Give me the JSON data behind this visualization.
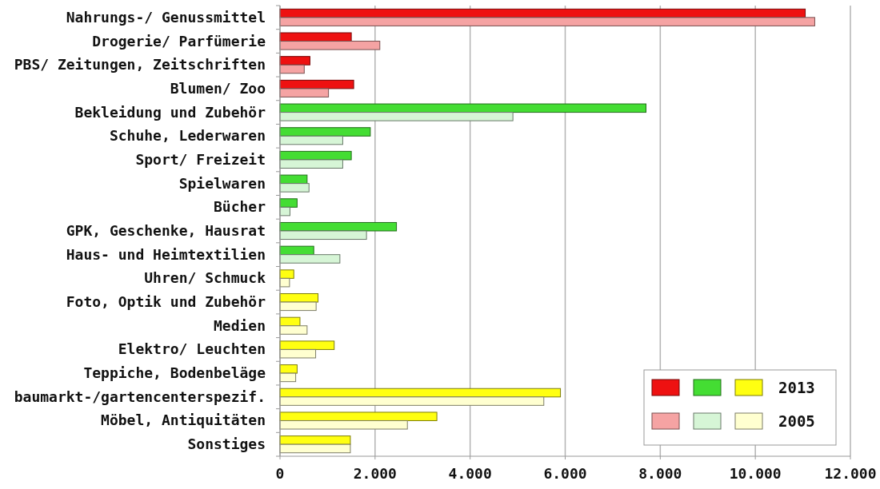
{
  "chart_data": {
    "type": "bar",
    "orientation": "horizontal",
    "categories": [
      "Nahrungs-/ Genussmittel",
      "Drogerie/ Parfümerie",
      "PBS/ Zeitungen, Zeitschriften",
      "Blumen/ Zoo",
      "Bekleidung und Zubehör",
      "Schuhe, Lederwaren",
      "Sport/ Freizeit",
      "Spielwaren",
      "Bücher",
      "GPK, Geschenke, Hausrat",
      "Haus- und Heimtextilien",
      "Uhren/ Schmuck",
      "Foto, Optik und Zubehör",
      "Medien",
      "Elektro/ Leuchten",
      "Teppiche, Bodenbeläge",
      "baumarkt-/gartencenterspezif.",
      "Möbel, Antiquitäten",
      "Sonstiges"
    ],
    "series": [
      {
        "name": "2013",
        "colors": [
          "#ee1111",
          "#ee1111",
          "#ee1111",
          "#ee1111",
          "#44dd33",
          "#44dd33",
          "#44dd33",
          "#44dd33",
          "#44dd33",
          "#44dd33",
          "#44dd33",
          "#ffff11",
          "#ffff11",
          "#ffff11",
          "#ffff11",
          "#ffff11",
          "#ffff11",
          "#ffff11",
          "#ffff11"
        ],
        "values": [
          11050,
          1500,
          630,
          1550,
          7700,
          1900,
          1500,
          570,
          360,
          2450,
          710,
          290,
          800,
          420,
          1140,
          360,
          5900,
          3300,
          1480
        ]
      },
      {
        "name": "2005",
        "colors": [
          "#f5a3a3",
          "#f5a3a3",
          "#f5a3a3",
          "#f5a3a3",
          "#d6f5d6",
          "#d6f5d6",
          "#d6f5d6",
          "#d6f5d6",
          "#d6f5d6",
          "#d6f5d6",
          "#d6f5d6",
          "#ffffd0",
          "#ffffd0",
          "#ffffd0",
          "#ffffd0",
          "#ffffd0",
          "#ffffd0",
          "#ffffd0",
          "#ffffd0"
        ],
        "values": [
          11250,
          2100,
          510,
          1020,
          4900,
          1320,
          1320,
          610,
          210,
          1820,
          1260,
          200,
          760,
          570,
          750,
          330,
          5550,
          2680,
          1480
        ]
      }
    ],
    "xlim": [
      0,
      12000
    ],
    "xticks": [
      0,
      {
        "value": 2000,
        "label": "2.000"
      },
      {
        "value": 4000,
        "label": "4.000"
      },
      {
        "value": 6000,
        "label": "6.000"
      },
      {
        "value": 8000,
        "label": "8.000"
      },
      {
        "value": 10000,
        "label": "10.000"
      },
      {
        "value": 12000,
        "label": "12.000"
      }
    ],
    "grid": "x",
    "legend": "bottom right"
  }
}
